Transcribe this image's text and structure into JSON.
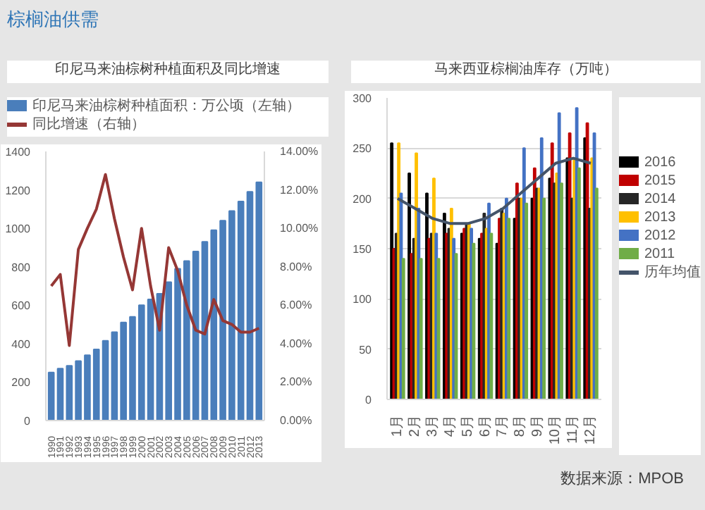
{
  "chart_data": [
    {
      "type": "bar",
      "title": "印尼马来油棕树种植面积及同比增速",
      "annotations": [
        "棕榈油供需"
      ],
      "categories": [
        "1990",
        "1991",
        "1992",
        "1993",
        "1994",
        "1995",
        "1996",
        "1997",
        "1998",
        "1999",
        "2000",
        "2001",
        "2002",
        "2003",
        "2004",
        "2005",
        "2006",
        "2007",
        "2008",
        "2009",
        "2010",
        "2011",
        "2012",
        "2013"
      ],
      "series": [
        {
          "name": "印尼马来油棕树种植面积：万公顷（左轴）",
          "color": "#4a7ebb",
          "values": [
            250,
            270,
            285,
            310,
            340,
            370,
            415,
            460,
            510,
            540,
            600,
            630,
            660,
            720,
            790,
            830,
            880,
            930,
            990,
            1040,
            1090,
            1140,
            1190,
            1240
          ]
        },
        {
          "name": "同比增速（右轴）",
          "type": "line",
          "axis": "y2",
          "color": "#953735",
          "values": [
            7.0,
            7.6,
            3.9,
            8.9,
            10.0,
            11.0,
            12.8,
            10.5,
            8.5,
            6.8,
            10.0,
            7.0,
            4.7,
            9.0,
            7.8,
            6.0,
            4.7,
            4.5,
            6.3,
            5.2,
            5.0,
            4.6,
            4.6,
            4.8
          ]
        }
      ],
      "ylim": [
        0,
        1400
      ],
      "yticks": [
        0,
        200,
        400,
        600,
        800,
        1000,
        1200,
        1400
      ],
      "y2lim": [
        0,
        14
      ],
      "y2ticks": [
        {
          "value": 0,
          "label": "0.00%"
        },
        {
          "value": 2,
          "label": "2.00%"
        },
        {
          "value": 4,
          "label": "4.00%"
        },
        {
          "value": 6,
          "label": "6.00%"
        },
        {
          "value": 8,
          "label": "8.00%"
        },
        {
          "value": 10,
          "label": "10.00%"
        },
        {
          "value": 12,
          "label": "12.00%"
        },
        {
          "value": 14,
          "label": "14.00%"
        }
      ],
      "legend": "top"
    },
    {
      "type": "bar",
      "title": "马来西亚棕榈油库存（万吨）",
      "annotations": [
        "数据来源：MPOB"
      ],
      "categories": [
        "1月",
        "2月",
        "3月",
        "4月",
        "5月",
        "6月",
        "7月",
        "8月",
        "9月",
        "10月",
        "11月",
        "12月"
      ],
      "series": [
        {
          "name": "2016",
          "color": "#000000",
          "values": [
            255,
            225,
            205,
            185,
            165,
            160,
            155,
            180,
            200,
            220,
            240,
            260
          ]
        },
        {
          "name": "2015",
          "color": "#c00000",
          "values": [
            150,
            145,
            160,
            165,
            170,
            165,
            180,
            215,
            230,
            255,
            265,
            275
          ]
        },
        {
          "name": "2014",
          "color": "#262626",
          "values": [
            165,
            160,
            165,
            170,
            175,
            185,
            190,
            200,
            210,
            215,
            200,
            190
          ]
        },
        {
          "name": "2013",
          "color": "#ffc000",
          "values": [
            255,
            245,
            220,
            190,
            175,
            170,
            185,
            200,
            210,
            225,
            240,
            240
          ]
        },
        {
          "name": "2012",
          "color": "#4472c4",
          "values": [
            205,
            190,
            165,
            160,
            170,
            195,
            200,
            250,
            260,
            285,
            290,
            265
          ]
        },
        {
          "name": "2011",
          "color": "#70ad47",
          "values": [
            140,
            140,
            140,
            145,
            155,
            165,
            180,
            195,
            200,
            215,
            230,
            210
          ]
        },
        {
          "name": "历年均值",
          "type": "line",
          "color": "#44546a",
          "values": [
            200,
            190,
            180,
            175,
            175,
            180,
            190,
            205,
            220,
            235,
            240,
            235
          ]
        }
      ],
      "ylim": [
        0,
        300
      ],
      "yticks": [
        0,
        50,
        100,
        150,
        200,
        250,
        300
      ],
      "grid": "y",
      "legend": "right"
    }
  ]
}
